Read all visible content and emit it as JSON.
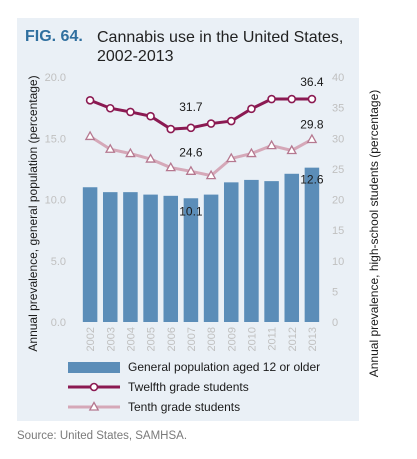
{
  "figure": {
    "label": "FIG. 64.",
    "title": "Cannabis use in the United States, 2002-2013",
    "source": "Source: United States, SAMHSA."
  },
  "chart_data": {
    "type": "bar",
    "categories": [
      "2002",
      "2003",
      "2004",
      "2005",
      "2006",
      "2007",
      "2008",
      "2009",
      "2010",
      "2011",
      "2012",
      "2013"
    ],
    "left_axis": {
      "label": "Annual prevalence, general population (percentage)",
      "min": 0,
      "max": 20,
      "ticks": [
        "0.0",
        "5.0",
        "10.0",
        "15.0",
        "20.0"
      ]
    },
    "right_axis": {
      "label": "Annual prevalence, high-school students (percentage)",
      "min": 0,
      "max": 40,
      "ticks": [
        "0",
        "5",
        "10",
        "15",
        "20",
        "25",
        "30",
        "35",
        "40"
      ]
    },
    "series": [
      {
        "name": "General population aged 12 or older",
        "type": "bar",
        "axis": "left",
        "color": "#5b8db8",
        "values": [
          11.0,
          10.6,
          10.6,
          10.4,
          10.3,
          10.1,
          10.4,
          11.4,
          11.6,
          11.5,
          12.1,
          12.6
        ]
      },
      {
        "name": "Twelfth grade students",
        "type": "line",
        "axis": "right",
        "color": "#8b1a52",
        "marker": "circle",
        "values": [
          36.2,
          34.9,
          34.3,
          33.6,
          31.5,
          31.7,
          32.4,
          32.8,
          34.8,
          36.4,
          36.4,
          36.4
        ]
      },
      {
        "name": "Tenth grade students",
        "type": "line",
        "axis": "right",
        "color": "#d5a8b8",
        "marker": "triangle",
        "values": [
          30.3,
          28.2,
          27.5,
          26.6,
          25.2,
          24.6,
          23.9,
          26.7,
          27.5,
          28.8,
          28.0,
          29.8
        ]
      }
    ],
    "data_labels": [
      {
        "series": 1,
        "index": 5,
        "text": "31.7"
      },
      {
        "series": 1,
        "index": 11,
        "text": "36.4"
      },
      {
        "series": 2,
        "index": 5,
        "text": "24.6"
      },
      {
        "series": 2,
        "index": 11,
        "text": "29.8"
      },
      {
        "series": 0,
        "index": 5,
        "text": "10.1"
      },
      {
        "series": 0,
        "index": 11,
        "text": "12.6"
      }
    ],
    "legend_position": "bottom",
    "grid": false
  }
}
